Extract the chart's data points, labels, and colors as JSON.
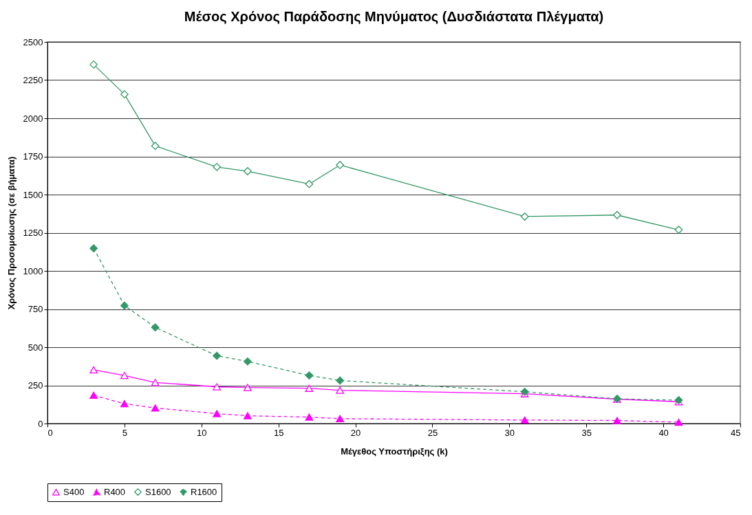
{
  "chart_data": {
    "type": "line",
    "title": "Μέσος Χρόνος Παράδοσης Μηνύματος (Δυσδιάστατα Πλέγματα)",
    "xlabel": "Μέγεθος Υποστήριξης (k)",
    "ylabel": "Χρόνος Προσομοίωσης (σε βήματα)",
    "x": [
      3,
      5,
      7,
      11,
      13,
      17,
      19,
      31,
      37,
      41
    ],
    "series": [
      {
        "name": "S400",
        "color": "#ff00ff",
        "marker": "triangle",
        "line_style": "solid",
        "values": [
          352,
          315,
          269,
          241,
          236,
          231,
          218,
          195,
          160,
          143
        ]
      },
      {
        "name": "R400",
        "color": "#ff00ff",
        "marker": "triangle",
        "line_style": "dashed",
        "values": [
          185,
          130,
          102,
          65,
          51,
          42,
          32,
          23,
          20,
          9
        ]
      },
      {
        "name": "S1600",
        "color": "#339966",
        "marker": "diamond",
        "line_style": "solid",
        "values": [
          2352,
          2157,
          1819,
          1681,
          1653,
          1569,
          1694,
          1356,
          1366,
          1269
        ]
      },
      {
        "name": "R1600",
        "color": "#339966",
        "marker": "diamond",
        "line_style": "dashed",
        "values": [
          1148,
          773,
          630,
          444,
          407,
          315,
          282,
          208,
          162,
          153
        ]
      }
    ],
    "xlim": [
      0,
      45
    ],
    "xticks": [
      0,
      5,
      10,
      15,
      20,
      25,
      30,
      35,
      40,
      45
    ],
    "ylim": [
      0,
      2500
    ],
    "yticks": [
      0,
      250,
      500,
      750,
      1000,
      1250,
      1500,
      1750,
      2000,
      2250,
      2500
    ],
    "grid": "y",
    "legend": "bottom"
  }
}
